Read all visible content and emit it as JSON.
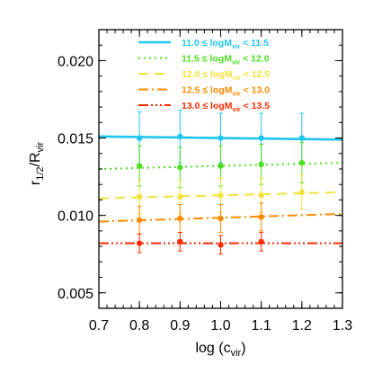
{
  "chart_data": {
    "type": "line",
    "xlim": [
      0.7,
      1.3
    ],
    "ylim": [
      0.004,
      0.022
    ],
    "x_ticks": [
      0.7,
      0.8,
      0.9,
      1.0,
      1.1,
      1.2,
      1.3
    ],
    "x_tick_labels": [
      "0.7",
      "0.8",
      "0.9",
      "1.0",
      "1.1",
      "1.2",
      "1.3"
    ],
    "y_ticks": [
      0.005,
      0.01,
      0.015,
      0.02
    ],
    "y_tick_labels": [
      "0.005",
      "0.010",
      "0.015",
      "0.020"
    ],
    "xlabel": {
      "base": "log (c",
      "sub": "vir",
      "tail": ")"
    },
    "ylabel": {
      "p1": "r",
      "p1sub": "1/2",
      "p2": "/R",
      "p2sub": "vir"
    },
    "grid": false,
    "legend_position": "top-right",
    "series": [
      {
        "name": {
          "low": "11.0",
          "high": "11.5"
        },
        "color": "#1fc6f0",
        "dash": "solid",
        "line": {
          "y_at_0.7": 0.0151,
          "y_at_1.3": 0.0149
        },
        "points": [
          {
            "x": 0.8,
            "y": 0.015,
            "err": 0.0017
          },
          {
            "x": 0.9,
            "y": 0.0151,
            "err": 0.0017
          },
          {
            "x": 1.0,
            "y": 0.015,
            "err": 0.0016
          },
          {
            "x": 1.1,
            "y": 0.015,
            "err": 0.0016
          },
          {
            "x": 1.2,
            "y": 0.015,
            "err": 0.0016
          }
        ]
      },
      {
        "name": {
          "low": "11.5",
          "high": "12.0"
        },
        "color": "#4be01e",
        "dash": "dotted",
        "line": {
          "y_at_0.7": 0.013,
          "y_at_1.3": 0.0134
        },
        "points": [
          {
            "x": 0.8,
            "y": 0.0132,
            "err": 0.0013
          },
          {
            "x": 0.9,
            "y": 0.0131,
            "err": 0.0013
          },
          {
            "x": 1.0,
            "y": 0.0132,
            "err": 0.0013
          },
          {
            "x": 1.1,
            "y": 0.0133,
            "err": 0.0013
          },
          {
            "x": 1.2,
            "y": 0.0134,
            "err": 0.0013
          }
        ]
      },
      {
        "name": {
          "low": "12.0",
          "high": "12.5"
        },
        "color": "#f2e23a",
        "dash": "dashed",
        "line": {
          "y_at_0.7": 0.0111,
          "y_at_1.3": 0.0115
        },
        "points": [
          {
            "x": 0.8,
            "y": 0.0112,
            "err": 0.0011
          },
          {
            "x": 0.9,
            "y": 0.0112,
            "err": 0.0011
          },
          {
            "x": 1.0,
            "y": 0.0113,
            "err": 0.0011
          },
          {
            "x": 1.1,
            "y": 0.0113,
            "err": 0.0011
          },
          {
            "x": 1.2,
            "y": 0.0115,
            "err": 0.0011
          }
        ]
      },
      {
        "name": {
          "low": "12.5",
          "high": "13.0"
        },
        "color": "#ff8c00",
        "dash": "dashdot",
        "line": {
          "y_at_0.7": 0.0096,
          "y_at_1.3": 0.0101
        },
        "points": [
          {
            "x": 0.8,
            "y": 0.0097,
            "err": 0.0009
          },
          {
            "x": 0.9,
            "y": 0.0098,
            "err": 0.0009
          },
          {
            "x": 1.0,
            "y": 0.0098,
            "err": 0.0009
          },
          {
            "x": 1.1,
            "y": 0.0099,
            "err": 0.0009
          }
        ]
      },
      {
        "name": {
          "low": "13.0",
          "high": "13.5"
        },
        "color": "#ff2a00",
        "dash": "dashdotdotdot",
        "line": {
          "y_at_0.7": 0.0082,
          "y_at_1.3": 0.0082
        },
        "points": [
          {
            "x": 0.8,
            "y": 0.0082,
            "err": 0.0006
          },
          {
            "x": 0.9,
            "y": 0.0083,
            "err": 0.0006
          },
          {
            "x": 1.0,
            "y": 0.0081,
            "err": 0.0006
          },
          {
            "x": 1.1,
            "y": 0.0083,
            "err": 0.0006
          }
        ]
      }
    ],
    "legend_template": {
      "mid": "≤ logM",
      "sub": "vir",
      "op": "<"
    }
  }
}
